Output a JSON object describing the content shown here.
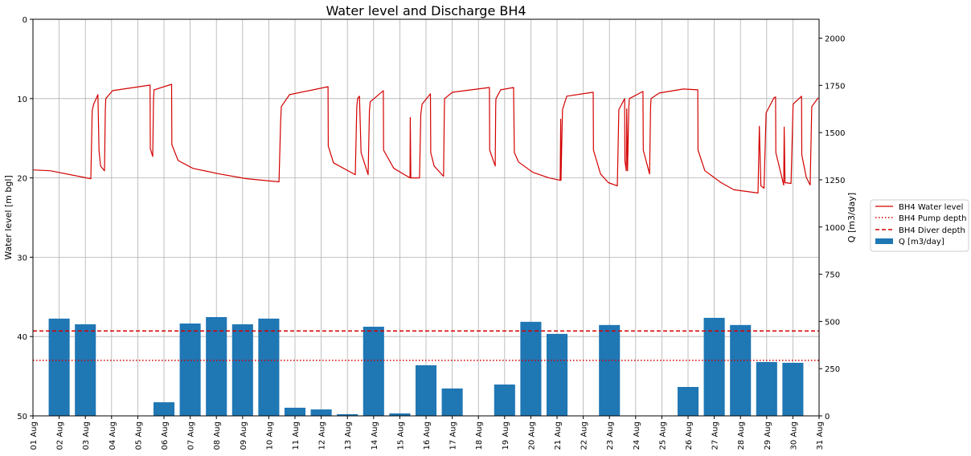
{
  "chart_data": {
    "type": "bar+line",
    "title": "Water level and Discharge BH4",
    "ylabel_left": "Water level [m bgl]",
    "ylabel_right": "Q [m3/day]",
    "ylim_left": [
      50,
      0
    ],
    "ylim_right": [
      0,
      2100
    ],
    "left_ticks": [
      0,
      10,
      20,
      30,
      40,
      50
    ],
    "right_ticks": [
      0,
      250,
      500,
      750,
      1000,
      1250,
      1500,
      1750,
      2000
    ],
    "grid": true,
    "legend_position": "outside-right",
    "x_labels": [
      "01 Aug",
      "02 Aug",
      "03 Aug",
      "04 Aug",
      "05 Aug",
      "06 Aug",
      "07 Aug",
      "08 Aug",
      "09 Aug",
      "10 Aug",
      "11 Aug",
      "12 Aug",
      "13 Aug",
      "14 Aug",
      "15 Aug",
      "16 Aug",
      "17 Aug",
      "18 Aug",
      "19 Aug",
      "20 Aug",
      "21 Aug",
      "22 Aug",
      "23 Aug",
      "24 Aug",
      "25 Aug",
      "26 Aug",
      "27 Aug",
      "28 Aug",
      "29 Aug",
      "30 Aug",
      "31 Aug"
    ],
    "discharge_q": [
      0,
      515,
      485,
      0,
      0,
      72,
      489,
      523,
      485,
      515,
      43,
      34,
      9,
      472,
      13,
      268,
      145,
      0,
      166,
      498,
      434,
      0,
      481,
      0,
      0,
      153,
      519,
      481,
      285,
      281
    ],
    "pump_depth": 43.0,
    "diver_depth": 39.3,
    "water_level_day_offset_level": [
      [
        0.02,
        19.0
      ],
      [
        0.67,
        19.1
      ],
      [
        2.21,
        20.1
      ],
      [
        2.26,
        11.5
      ],
      [
        2.32,
        10.7
      ],
      [
        2.48,
        9.5
      ],
      [
        2.52,
        16.6
      ],
      [
        2.58,
        18.5
      ],
      [
        2.73,
        19.1
      ],
      [
        2.76,
        11.5
      ],
      [
        2.78,
        10.0
      ],
      [
        3.04,
        9.0
      ],
      [
        4.47,
        8.3
      ],
      [
        4.48,
        16.3
      ],
      [
        4.57,
        17.3
      ],
      [
        4.6,
        10.0
      ],
      [
        4.62,
        8.9
      ],
      [
        5.29,
        8.2
      ],
      [
        5.3,
        15.8
      ],
      [
        5.54,
        17.8
      ],
      [
        6.1,
        18.8
      ],
      [
        7.12,
        19.5
      ],
      [
        8.16,
        20.1
      ],
      [
        9.39,
        20.5
      ],
      [
        9.45,
        13.0
      ],
      [
        9.48,
        11.0
      ],
      [
        9.79,
        9.5
      ],
      [
        11.26,
        8.5
      ],
      [
        11.27,
        16.0
      ],
      [
        11.47,
        18.1
      ],
      [
        12.3,
        19.6
      ],
      [
        12.36,
        11.0
      ],
      [
        12.39,
        10.0
      ],
      [
        12.46,
        9.7
      ],
      [
        12.52,
        16.8
      ],
      [
        12.79,
        19.6
      ],
      [
        12.84,
        11.5
      ],
      [
        12.87,
        10.4
      ],
      [
        13.37,
        9.0
      ],
      [
        13.38,
        16.5
      ],
      [
        13.77,
        18.8
      ],
      [
        14.39,
        20.0
      ],
      [
        14.4,
        12.4
      ],
      [
        14.42,
        20.0
      ],
      [
        14.75,
        20.0
      ],
      [
        14.8,
        12.0
      ],
      [
        14.85,
        10.7
      ],
      [
        15.17,
        9.4
      ],
      [
        15.18,
        16.8
      ],
      [
        15.31,
        18.5
      ],
      [
        15.67,
        19.8
      ],
      [
        15.7,
        11.5
      ],
      [
        15.71,
        10.0
      ],
      [
        16.01,
        9.2
      ],
      [
        17.42,
        8.6
      ],
      [
        17.43,
        16.5
      ],
      [
        17.64,
        18.5
      ],
      [
        17.66,
        11.0
      ],
      [
        17.67,
        10.0
      ],
      [
        17.85,
        8.9
      ],
      [
        18.34,
        8.6
      ],
      [
        18.37,
        16.8
      ],
      [
        18.53,
        18.0
      ],
      [
        19.08,
        19.3
      ],
      [
        19.69,
        20.0
      ],
      [
        20.12,
        20.3
      ],
      [
        20.14,
        12.6
      ],
      [
        20.15,
        20.3
      ],
      [
        20.21,
        11.4
      ],
      [
        20.37,
        9.7
      ],
      [
        21.38,
        9.2
      ],
      [
        21.39,
        16.5
      ],
      [
        21.66,
        19.5
      ],
      [
        21.96,
        20.6
      ],
      [
        22.3,
        21.0
      ],
      [
        22.36,
        11.4
      ],
      [
        22.58,
        10.0
      ],
      [
        22.59,
        17.8
      ],
      [
        22.64,
        19.1
      ],
      [
        22.66,
        11.3
      ],
      [
        22.69,
        19.1
      ],
      [
        22.74,
        11.0
      ],
      [
        22.76,
        10.0
      ],
      [
        23.28,
        9.1
      ],
      [
        23.29,
        16.5
      ],
      [
        23.53,
        19.5
      ],
      [
        23.57,
        11.0
      ],
      [
        23.59,
        10.0
      ],
      [
        23.9,
        9.3
      ],
      [
        24.82,
        8.8
      ],
      [
        25.37,
        8.9
      ],
      [
        25.38,
        16.5
      ],
      [
        25.64,
        19.1
      ],
      [
        26.26,
        20.6
      ],
      [
        26.75,
        21.5
      ],
      [
        27.67,
        21.9
      ],
      [
        27.72,
        13.5
      ],
      [
        27.78,
        21.0
      ],
      [
        27.9,
        21.3
      ],
      [
        27.98,
        11.8
      ],
      [
        28.28,
        9.9
      ],
      [
        28.34,
        9.8
      ],
      [
        28.35,
        16.8
      ],
      [
        28.65,
        20.9
      ],
      [
        28.67,
        13.6
      ],
      [
        28.7,
        20.6
      ],
      [
        28.93,
        20.7
      ],
      [
        29.01,
        10.7
      ],
      [
        29.33,
        9.7
      ],
      [
        29.34,
        17.1
      ],
      [
        29.51,
        19.9
      ],
      [
        29.66,
        20.9
      ],
      [
        29.72,
        11.0
      ],
      [
        29.97,
        9.9
      ]
    ],
    "legend": [
      "BH4 Water level",
      "BH4 Pump depth",
      "BH4 Diver depth",
      "Q [m3/day]"
    ],
    "colors": {
      "water_level": "#d40000",
      "pump": "#d40000",
      "diver": "#d40000",
      "bars": "#1f77b4",
      "grid": "#b0b0b0"
    }
  }
}
